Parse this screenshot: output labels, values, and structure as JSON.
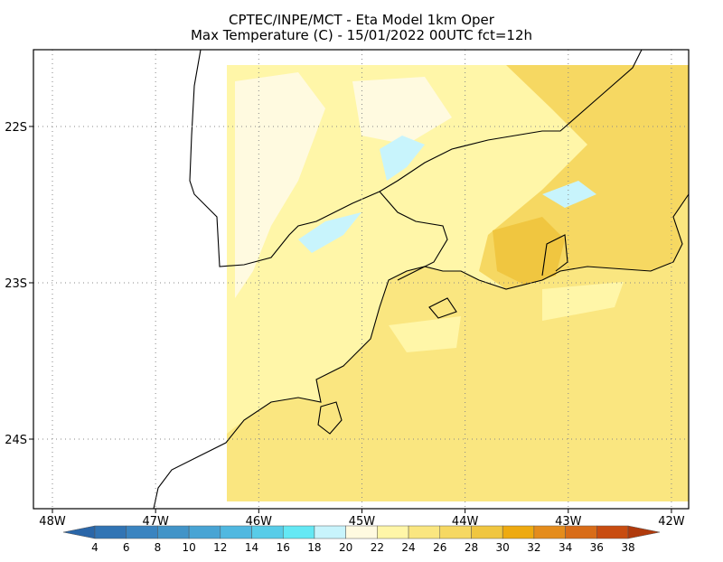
{
  "map": {
    "title": "CPTEC/INPE/MCT -  Eta Model 1km Oper",
    "subtitle": "Max Temperature (C) - 15/01/2022 00UTC fct=12h",
    "xlim": [
      -48.184,
      -41.833
    ],
    "ylim": [
      -24.445,
      -21.509
    ],
    "xticks": [
      {
        "value": -48,
        "label": "48W"
      },
      {
        "value": -47,
        "label": "47W"
      },
      {
        "value": -46,
        "label": "46W"
      },
      {
        "value": -45,
        "label": "45W"
      },
      {
        "value": -44,
        "label": "44W"
      },
      {
        "value": -43,
        "label": "43W"
      },
      {
        "value": -42,
        "label": "42W"
      }
    ],
    "yticks": [
      {
        "value": -22,
        "label": "22S"
      },
      {
        "value": -23,
        "label": "23S"
      },
      {
        "value": -24,
        "label": "24S"
      }
    ],
    "grid": true,
    "colorbar": {
      "levels": [
        4,
        6,
        8,
        10,
        12,
        14,
        16,
        18,
        20,
        22,
        24,
        26,
        28,
        30,
        32,
        34,
        36,
        38
      ],
      "colors": [
        "#2a66a8",
        "#3174b4",
        "#3a84c0",
        "#4294c8",
        "#48a4d4",
        "#50b8e0",
        "#58cce8",
        "#64e8f4",
        "#c8f4fc",
        "#fffae0",
        "#fff6a8",
        "#fae680",
        "#f6d862",
        "#f0c640",
        "#eeaa10",
        "#e48c1c",
        "#d86c18",
        "#c84c10",
        "#b03a0c"
      ]
    }
  }
}
